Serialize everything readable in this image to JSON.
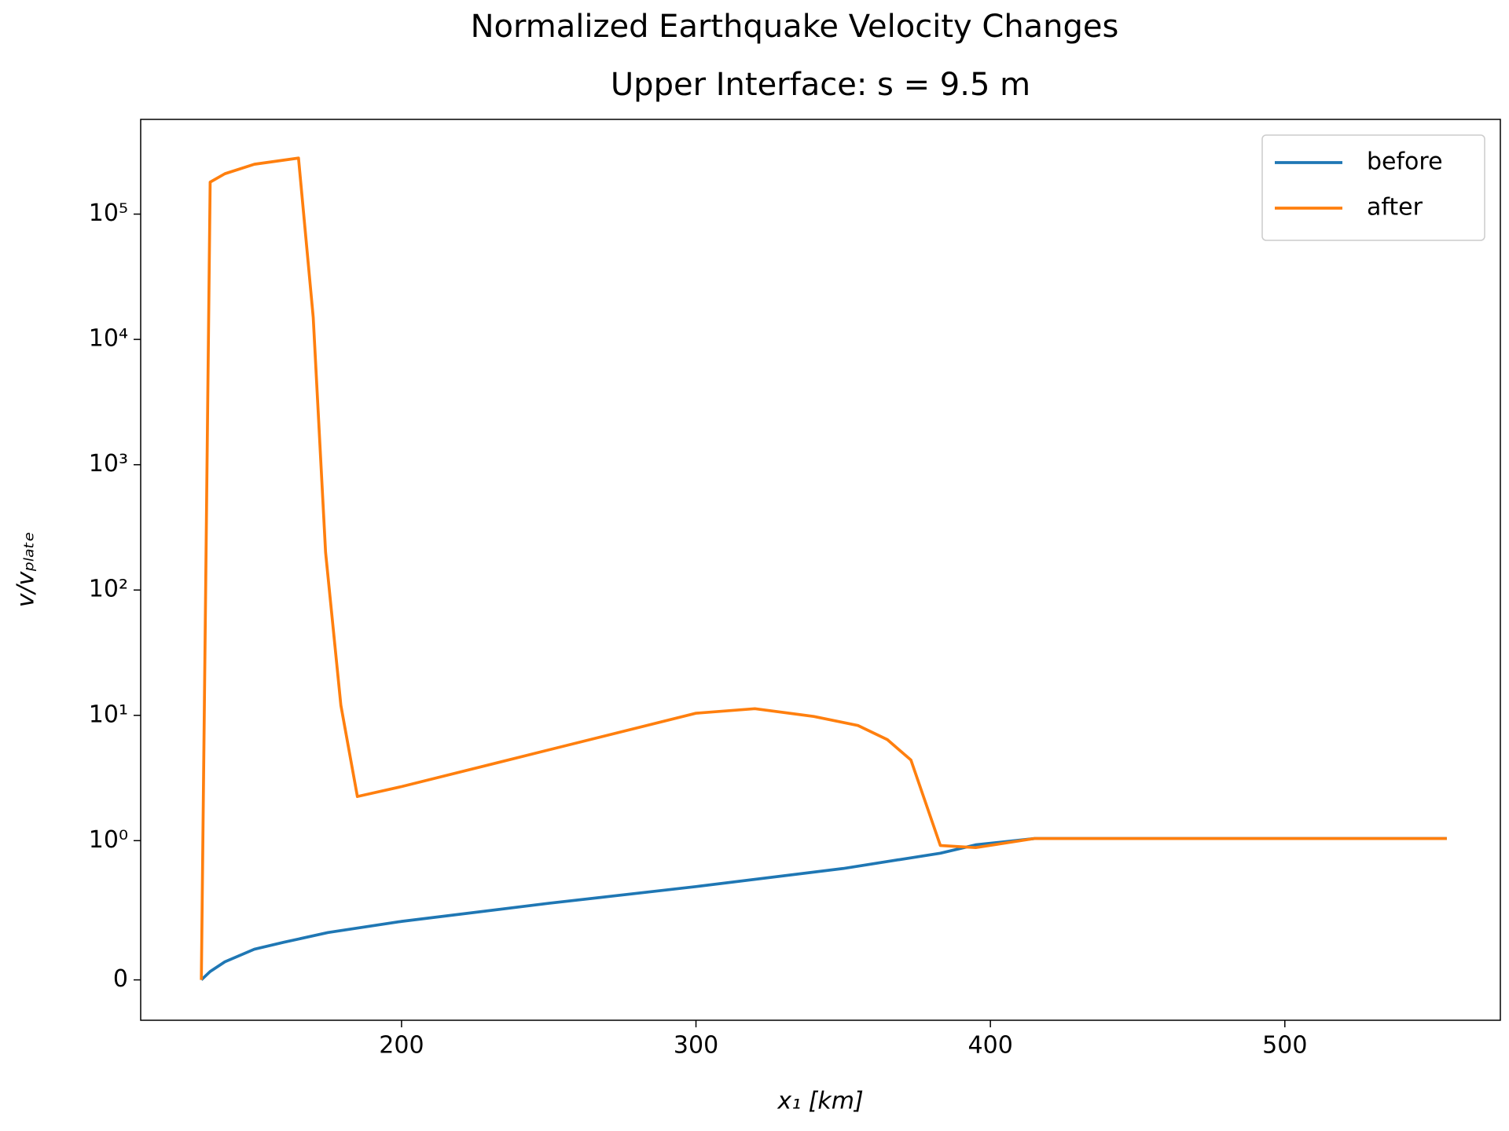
{
  "chart_data": {
    "type": "line",
    "title": "Normalized Earthquake Velocity Changes",
    "subtitle": "Upper Interface: s = 9.5 m",
    "xlabel": "x₁ [km]",
    "ylabel": "v/vₚₗₐₜₑ",
    "yscale": "symlog",
    "linthresh": 1,
    "xlim": [
      111.4,
      573.2
    ],
    "xticks": [
      200,
      300,
      400,
      500
    ],
    "ylim": [
      -0.29,
      570000
    ],
    "yticks": [
      0,
      {
        "value": 1,
        "label": "10⁰"
      },
      {
        "value": 10,
        "label": "10¹"
      },
      {
        "value": 100,
        "label": "10²"
      },
      {
        "value": 1000,
        "label": "10³"
      },
      {
        "value": 10000,
        "label": "10⁴"
      },
      {
        "value": 100000,
        "label": "10⁵"
      }
    ],
    "legend": "upper right",
    "series": [
      {
        "name": "before",
        "color": "#1f77b4",
        "x": [
          132,
          135,
          140,
          150,
          160,
          175,
          200,
          250,
          300,
          350,
          383,
          395,
          415,
          555
        ],
        "values": [
          0,
          0.06,
          0.13,
          0.22,
          0.27,
          0.34,
          0.42,
          0.55,
          0.67,
          0.8,
          0.91,
          0.97,
          1.04,
          1.04
        ]
      },
      {
        "name": "after",
        "color": "#ff7f0e",
        "x": [
          132,
          135,
          140,
          150,
          165,
          170,
          174.2,
          179.4,
          185,
          200,
          250,
          300,
          320,
          340,
          355,
          365,
          373,
          383,
          395,
          415,
          555
        ],
        "values": [
          0,
          180000,
          210000,
          250000,
          280000,
          15000,
          200,
          12,
          2.25,
          2.7,
          5.3,
          10.4,
          11.3,
          9.8,
          8.3,
          6.4,
          4.4,
          0.965,
          0.95,
          1.04,
          1.04
        ]
      }
    ]
  }
}
